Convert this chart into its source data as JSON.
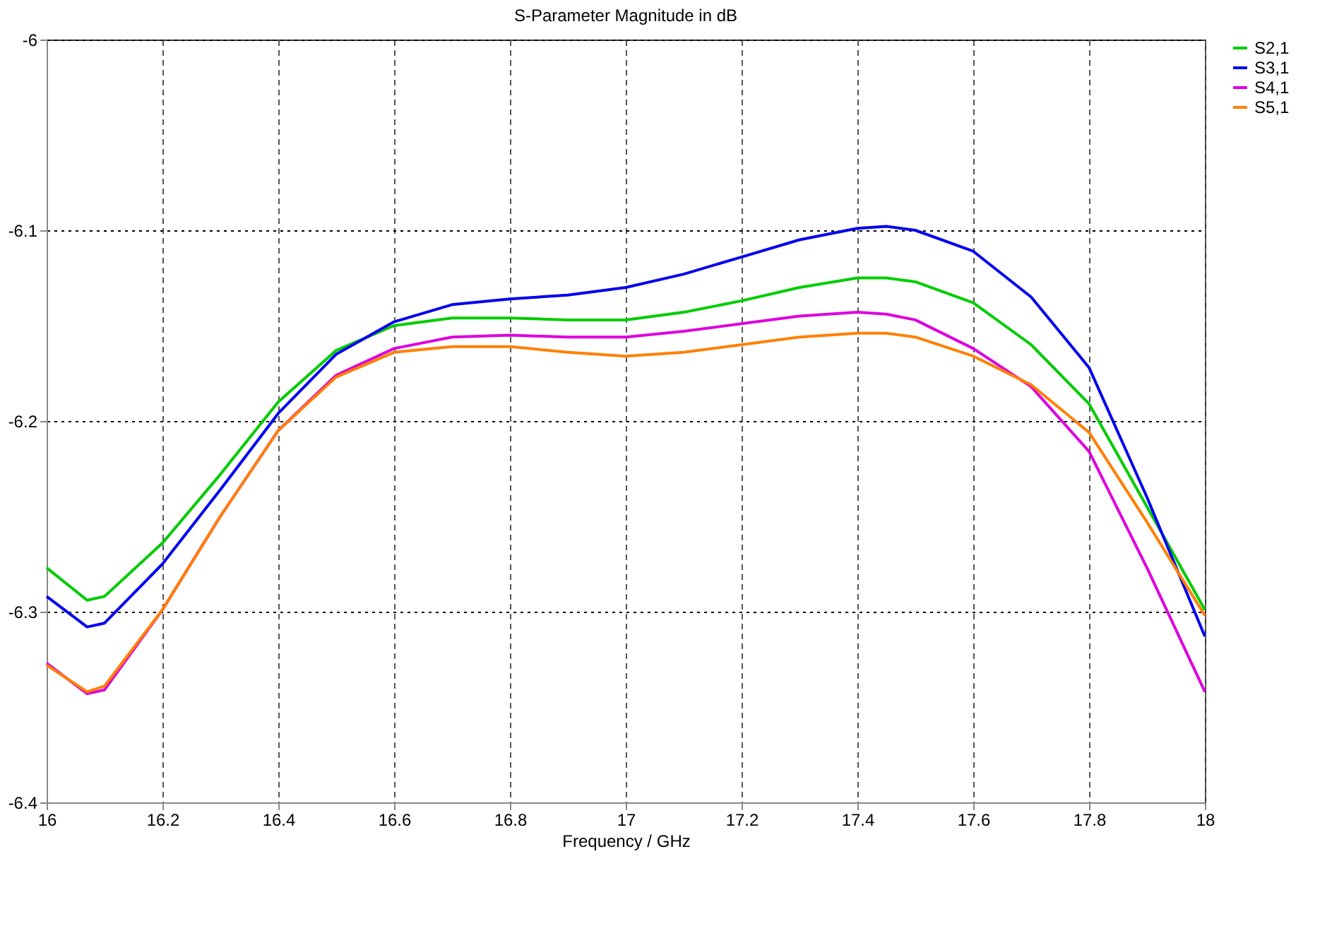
{
  "chart_data": {
    "type": "line",
    "title": "S-Parameter Magnitude in dB",
    "xlabel": "Frequency / GHz",
    "x": [
      16,
      16.07,
      16.1,
      16.2,
      16.3,
      16.4,
      16.5,
      16.6,
      16.7,
      16.8,
      16.9,
      17,
      17.1,
      17.2,
      17.3,
      17.4,
      17.45,
      17.5,
      17.6,
      17.7,
      17.8,
      17.9,
      18
    ],
    "series": [
      {
        "name": "S2,1",
        "color": "#00cc00",
        "values": [
          -6.277,
          -6.294,
          -6.292,
          -6.264,
          -6.228,
          -6.19,
          -6.163,
          -6.15,
          -6.146,
          -6.146,
          -6.147,
          -6.147,
          -6.143,
          -6.137,
          -6.13,
          -6.125,
          -6.125,
          -6.127,
          -6.138,
          -6.16,
          -6.191,
          -6.245,
          -6.299
        ]
      },
      {
        "name": "S3,1",
        "color": "#0000ee",
        "values": [
          -6.292,
          -6.308,
          -6.306,
          -6.275,
          -6.236,
          -6.196,
          -6.165,
          -6.148,
          -6.139,
          -6.136,
          -6.134,
          -6.13,
          -6.123,
          -6.114,
          -6.105,
          -6.099,
          -6.098,
          -6.1,
          -6.111,
          -6.135,
          -6.172,
          -6.24,
          -6.313
        ]
      },
      {
        "name": "S4,1",
        "color": "#dd00dd",
        "values": [
          -6.327,
          -6.343,
          -6.341,
          -6.299,
          -6.25,
          -6.205,
          -6.176,
          -6.162,
          -6.156,
          -6.155,
          -6.156,
          -6.156,
          -6.153,
          -6.149,
          -6.145,
          -6.143,
          -6.144,
          -6.147,
          -6.162,
          -6.182,
          -6.216,
          -6.277,
          -6.342
        ]
      },
      {
        "name": "S5,1",
        "color": "#ff8000",
        "values": [
          -6.328,
          -6.342,
          -6.339,
          -6.299,
          -6.25,
          -6.205,
          -6.177,
          -6.164,
          -6.161,
          -6.161,
          -6.164,
          -6.166,
          -6.164,
          -6.16,
          -6.156,
          -6.154,
          -6.154,
          -6.156,
          -6.166,
          -6.181,
          -6.206,
          -6.253,
          -6.302
        ]
      }
    ],
    "xlim": [
      16,
      18
    ],
    "xticks": [
      16,
      16.2,
      16.4,
      16.6,
      16.8,
      17,
      17.2,
      17.4,
      17.6,
      17.8,
      18
    ],
    "ylim": [
      -6.4,
      -6
    ],
    "yticks": [
      -6.4,
      -6.3,
      -6.2,
      -6.1,
      -6
    ],
    "grid": true,
    "legend": "top right",
    "marker": "none",
    "line_style": "solid"
  }
}
